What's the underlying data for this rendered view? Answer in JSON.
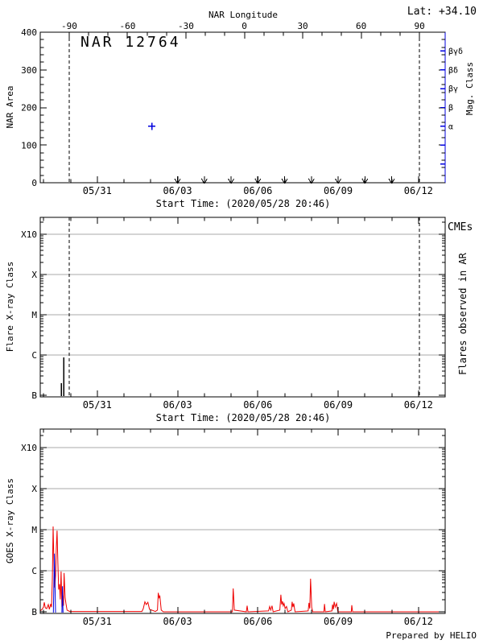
{
  "header": {
    "lat": "Lat: +34.10"
  },
  "footer": {
    "prepared_by": "Prepared by HELIO"
  },
  "time_axis": {
    "start_label": "Start Time: (2020/05/28 20:46)",
    "major_labels": [
      "05/31",
      "06/03",
      "06/06",
      "06/09",
      "06/12"
    ],
    "major_days": [
      2.13,
      5.13,
      8.13,
      11.13,
      14.13
    ],
    "first_minor_day": 0.13,
    "minor_day_step": 1,
    "span_days": 15.13
  },
  "colors": {
    "axis": "#000000",
    "blue": "#0000dd",
    "red": "#ee0000",
    "grid": "#a8a8a8"
  },
  "chart_data": [
    {
      "type": "scatter",
      "panel": "nar-area",
      "title": "NAR 12764",
      "ylabel": "NAR Area",
      "ylim": [
        0,
        400
      ],
      "yticks": [
        0,
        100,
        200,
        300,
        400
      ],
      "yminor_step": 20,
      "xlabel": "Start Time: (2020/05/28 20:46)",
      "top_axis": {
        "label": "NAR Longitude",
        "ticks_deg": [
          -90,
          -60,
          -30,
          0,
          30,
          60,
          90
        ],
        "minor_step_deg": 10,
        "day_at_minus90": 1.08,
        "day_at_plus90": 14.17
      },
      "right_axis": {
        "label": "Mag. Class",
        "tick_labels": [
          "βγδ",
          "βδ",
          "βγ",
          "β",
          "α"
        ],
        "num_ticks": 7
      },
      "points": [
        {
          "date": "06/02",
          "day": 4.17,
          "area": 150,
          "marker": "plus"
        }
      ],
      "zero_area_marker_days": [
        5.13,
        6.13,
        7.13,
        8.13,
        9.13,
        10.13,
        11.13,
        12.13,
        13.13
      ],
      "limb_crossing_dashed_days": [
        1.08,
        14.17
      ]
    },
    {
      "type": "impulse",
      "panel": "flares-in-ar",
      "ylabel": "Flare X-ray Class",
      "right_label": "Flares observed in AR",
      "cme_label": "CMEs",
      "xlabel": "Start Time: (2020/05/28 20:46)",
      "ytick_labels": [
        "B",
        "C",
        "M",
        "X",
        "X10"
      ],
      "ytick_flux": [
        1e-07,
        1e-06,
        1e-05,
        0.0001,
        0.001
      ],
      "grid_flux": [
        1e-06,
        1e-05,
        0.0001,
        0.001
      ],
      "flares": [
        {
          "day": 0.78,
          "class": "B2.0",
          "peak_flux": 2e-07
        },
        {
          "day": 0.87,
          "class": "B8.7",
          "peak_flux": 8.7e-07
        }
      ],
      "cmes": [],
      "limb_crossing_dashed_days": [
        1.08,
        14.17
      ]
    },
    {
      "type": "line",
      "panel": "goes-xray",
      "ylabel": "GOES X-ray Class",
      "ytick_labels": [
        "B",
        "C",
        "M",
        "X",
        "X10"
      ],
      "ytick_flux": [
        1e-07,
        1e-06,
        1e-05,
        0.0001,
        0.001
      ],
      "grid_flux": [
        1e-06,
        1e-05,
        0.0001,
        0.001
      ],
      "baseline_flux": 1.05e-07,
      "series": [
        {
          "name": "GOES long channel",
          "color": "#ee0000",
          "points": [
            [
              0.0,
              1.05e-07
            ],
            [
              0.07,
              1.15e-07
            ],
            [
              0.12,
              1.3e-07
            ],
            [
              0.15,
              1.7e-07
            ],
            [
              0.19,
              1.25e-07
            ],
            [
              0.24,
              1.2e-07
            ],
            [
              0.3,
              1.5e-07
            ],
            [
              0.34,
              1.15e-07
            ],
            [
              0.39,
              1.55e-07
            ],
            [
              0.42,
              1.3e-07
            ],
            [
              0.45,
              6e-07
            ],
            [
              0.48,
              1.2e-05
            ],
            [
              0.51,
              1.5e-06
            ],
            [
              0.54,
              3.9e-07
            ],
            [
              0.57,
              7.6e-07
            ],
            [
              0.6,
              3.7e-06
            ],
            [
              0.63,
              9.5e-06
            ],
            [
              0.66,
              1.5e-06
            ],
            [
              0.69,
              3.5e-07
            ],
            [
              0.72,
              4.7e-07
            ],
            [
              0.75,
              2e-07
            ],
            [
              0.78,
              9.6e-07
            ],
            [
              0.81,
              1.3e-07
            ],
            [
              0.84,
              2.5e-07
            ],
            [
              0.87,
              1.4e-07
            ],
            [
              0.89,
              8.8e-07
            ],
            [
              0.93,
              2.2e-07
            ],
            [
              0.96,
              1.6e-07
            ],
            [
              1.0,
              1.1e-07
            ],
            [
              1.1,
              1.02e-07
            ],
            [
              3.8,
              1.02e-07
            ],
            [
              3.85,
              1.2e-07
            ],
            [
              3.91,
              1.75e-07
            ],
            [
              3.96,
              1.5e-07
            ],
            [
              4.02,
              1.7e-07
            ],
            [
              4.08,
              1.15e-07
            ],
            [
              4.3,
              1.02e-07
            ],
            [
              4.38,
              1.1e-07
            ],
            [
              4.41,
              2.9e-07
            ],
            [
              4.44,
              2.2e-07
            ],
            [
              4.47,
              2.4e-07
            ],
            [
              4.52,
              1.1e-07
            ],
            [
              4.6,
              1e-07
            ],
            [
              7.18,
              1e-07
            ],
            [
              7.21,
              3.7e-07
            ],
            [
              7.25,
              1.1e-07
            ],
            [
              7.7,
              1e-07
            ],
            [
              7.73,
              1.4e-07
            ],
            [
              7.76,
              1e-07
            ],
            [
              8.53,
              1.05e-07
            ],
            [
              8.57,
              1.35e-07
            ],
            [
              8.61,
              1.1e-07
            ],
            [
              8.66,
              1.4e-07
            ],
            [
              8.7,
              1e-07
            ],
            [
              8.95,
              1.1e-07
            ],
            [
              8.99,
              2.6e-07
            ],
            [
              9.02,
              1.5e-07
            ],
            [
              9.05,
              1.8e-07
            ],
            [
              9.08,
              1.4e-07
            ],
            [
              9.11,
              1.6e-07
            ],
            [
              9.15,
              1.2e-07
            ],
            [
              9.2,
              1.35e-07
            ],
            [
              9.25,
              1e-07
            ],
            [
              9.38,
              1.1e-07
            ],
            [
              9.41,
              1.75e-07
            ],
            [
              9.44,
              1.3e-07
            ],
            [
              9.47,
              1.6e-07
            ],
            [
              9.52,
              1e-07
            ],
            [
              10.01,
              1.05e-07
            ],
            [
              10.04,
              1.65e-07
            ],
            [
              10.07,
              1.2e-07
            ],
            [
              10.1,
              6.4e-07
            ],
            [
              10.14,
              1.3e-07
            ],
            [
              10.18,
              1e-07
            ],
            [
              10.6,
              1e-07
            ],
            [
              10.62,
              1.55e-07
            ],
            [
              10.65,
              1e-07
            ],
            [
              10.9,
              1.05e-07
            ],
            [
              10.92,
              1.5e-07
            ],
            [
              10.95,
              1.15e-07
            ],
            [
              10.98,
              1.75e-07
            ],
            [
              11.02,
              1.3e-07
            ],
            [
              11.07,
              1.6e-07
            ],
            [
              11.12,
              1e-07
            ],
            [
              11.62,
              1e-07
            ],
            [
              11.64,
              1.45e-07
            ],
            [
              11.67,
              1e-07
            ],
            [
              15.13,
              1e-07
            ]
          ]
        },
        {
          "name": "GOES short channel",
          "color": "#0000dd",
          "segments": [
            [
              [
                0.49,
                8e-08
              ],
              [
                0.53,
                2.6e-06
              ],
              [
                0.57,
                8e-08
              ]
            ],
            [
              [
                0.81,
                8e-08
              ],
              [
                0.83,
                4.2e-07
              ],
              [
                0.85,
                8e-08
              ]
            ]
          ]
        }
      ]
    }
  ]
}
